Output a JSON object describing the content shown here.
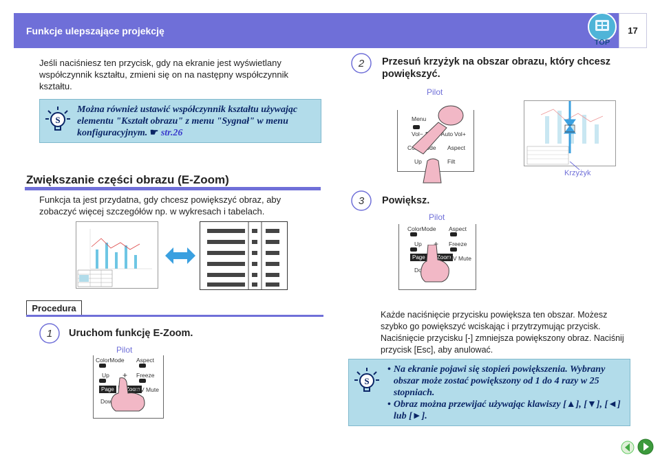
{
  "header": {
    "title": "Funkcje ulepszające projekcję",
    "page_number": "17",
    "top_button": "TOP"
  },
  "intro_text": "Jeśli naciśniesz ten przycisk, gdy na ekranie jest wyświetlany współczynnik kształtu, zmieni się on na następny współczynnik kształtu.",
  "tip1": {
    "text": "Można również ustawić współczynnik kształtu używając elementu \"Kształt obrazu\" z menu \"Sygnał\" w menu konfiguracyjnym.",
    "link_text": "str.26"
  },
  "section": {
    "title": "Zwiększanie części obrazu (E-Zoom)",
    "description": "Funkcja ta jest przydatna, gdy chcesz powiększyć obraz, aby zobaczyć więcej szczegółów np. w wykresach i tabelach."
  },
  "procedure_label": "Procedura",
  "steps": [
    {
      "number": "1",
      "title": "Uruchom funkcję E-Zoom.",
      "pilot": "Pilot"
    },
    {
      "number": "2",
      "title": "Przesuń krzyżyk na obszar obrazu, który chcesz powiększyć.",
      "pilot": "Pilot"
    },
    {
      "number": "3",
      "title": "Powiększ.",
      "pilot": "Pilot"
    }
  ],
  "remote_labels": {
    "menu": "Menu",
    "vol_minus": "Vol−",
    "enter_auto": "Enter/Auto",
    "vol_plus": "Vol+",
    "color_mode": "ColorMode",
    "aspect": "Aspect",
    "up": "Up",
    "freeze": "Freeze",
    "filt": "Filt",
    "plus": "+",
    "minus": "−",
    "page": "Page",
    "ezoom": "E-Zoom",
    "av_mute": "A/V Mute",
    "down": "Down"
  },
  "crosshair_label": "Krzyżyk",
  "step3_text": "Każde naciśnięcie przycisku powiększa ten obszar. Możesz szybko go powiększyć wciskając i przytrzymując przycisk. Naciśnięcie przycisku [-] zmniejsza powiększony obraz. Naciśnij przycisk [Esc], aby anulować.",
  "tip2": {
    "bullet1": "Na ekranie pojawi się stopień powiększenia. Wybrany obszar może zostać powiększony od 1 do 4 razy w 25 stopniach.",
    "bullet2": "Obraz można przewijać używając klawiszy [▲], [▼], [◄] lub [►]."
  },
  "colors": {
    "accent": "#6f6fd8",
    "tip_bg": "#b2dcea",
    "tip_text": "#0a2566",
    "finger": "#f2b8c6"
  }
}
